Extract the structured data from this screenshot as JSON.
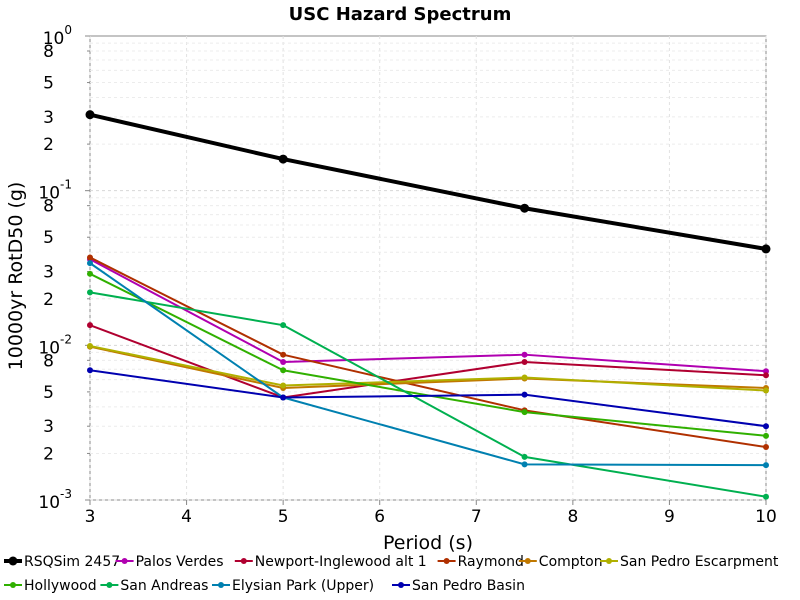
{
  "chart_data": {
    "type": "line",
    "title": "USC Hazard Spectrum",
    "xlabel": "Period (s)",
    "ylabel": "10000yr RotD50 (g)",
    "xlim": [
      3,
      10
    ],
    "ylim": [
      0.001,
      1
    ],
    "yscale": "log",
    "grid": true,
    "legend_position": "bottom",
    "x_ticks": [
      "3",
      "4",
      "5",
      "6",
      "7",
      "8",
      "9",
      "10"
    ],
    "y_major_ticks": [
      {
        "base": "10",
        "exp": "0",
        "value": 1
      },
      {
        "base": "10",
        "exp": "-1",
        "value": 0.1
      },
      {
        "base": "10",
        "exp": "-2",
        "value": 0.01
      },
      {
        "base": "10",
        "exp": "-3",
        "value": 0.001
      }
    ],
    "y_minor_labels": [
      "8",
      "5",
      "3",
      "2"
    ],
    "x": [
      3,
      5,
      7.5,
      10
    ],
    "series": [
      {
        "name": "RSQSim 2457",
        "color": "#000000",
        "width": 4,
        "values": [
          0.31,
          0.16,
          0.077,
          0.042
        ]
      },
      {
        "name": "Palos Verdes",
        "color": "#b000b0",
        "width": 2,
        "values": [
          0.036,
          0.0078,
          0.0087,
          0.0068
        ]
      },
      {
        "name": "Newport-Inglewood alt 1",
        "color": "#b00030",
        "width": 2,
        "values": [
          0.0135,
          0.0046,
          0.0078,
          0.0064
        ]
      },
      {
        "name": "Raymond",
        "color": "#b03000",
        "width": 2,
        "values": [
          0.037,
          0.0087,
          0.0038,
          0.0022
        ]
      },
      {
        "name": "Compton",
        "color": "#c07800",
        "width": 2,
        "values": [
          0.0098,
          0.0053,
          0.0061,
          0.0053
        ]
      },
      {
        "name": "San Pedro Escarpment",
        "color": "#b0b000",
        "width": 2,
        "values": [
          0.0099,
          0.0055,
          0.0062,
          0.0051
        ]
      },
      {
        "name": "Hollywood",
        "color": "#30b000",
        "width": 2,
        "values": [
          0.029,
          0.0069,
          0.0037,
          0.0026
        ]
      },
      {
        "name": "San Andreas",
        "color": "#00b050",
        "width": 2,
        "values": [
          0.022,
          0.0135,
          0.0019,
          0.00105
        ]
      },
      {
        "name": "Elysian Park (Upper)",
        "color": "#0080b0",
        "width": 2,
        "values": [
          0.034,
          0.0046,
          0.0017,
          0.00168
        ]
      },
      {
        "name": "San Pedro Basin",
        "color": "#0000b0",
        "width": 2,
        "values": [
          0.0069,
          0.0046,
          0.0048,
          0.003
        ]
      }
    ]
  }
}
